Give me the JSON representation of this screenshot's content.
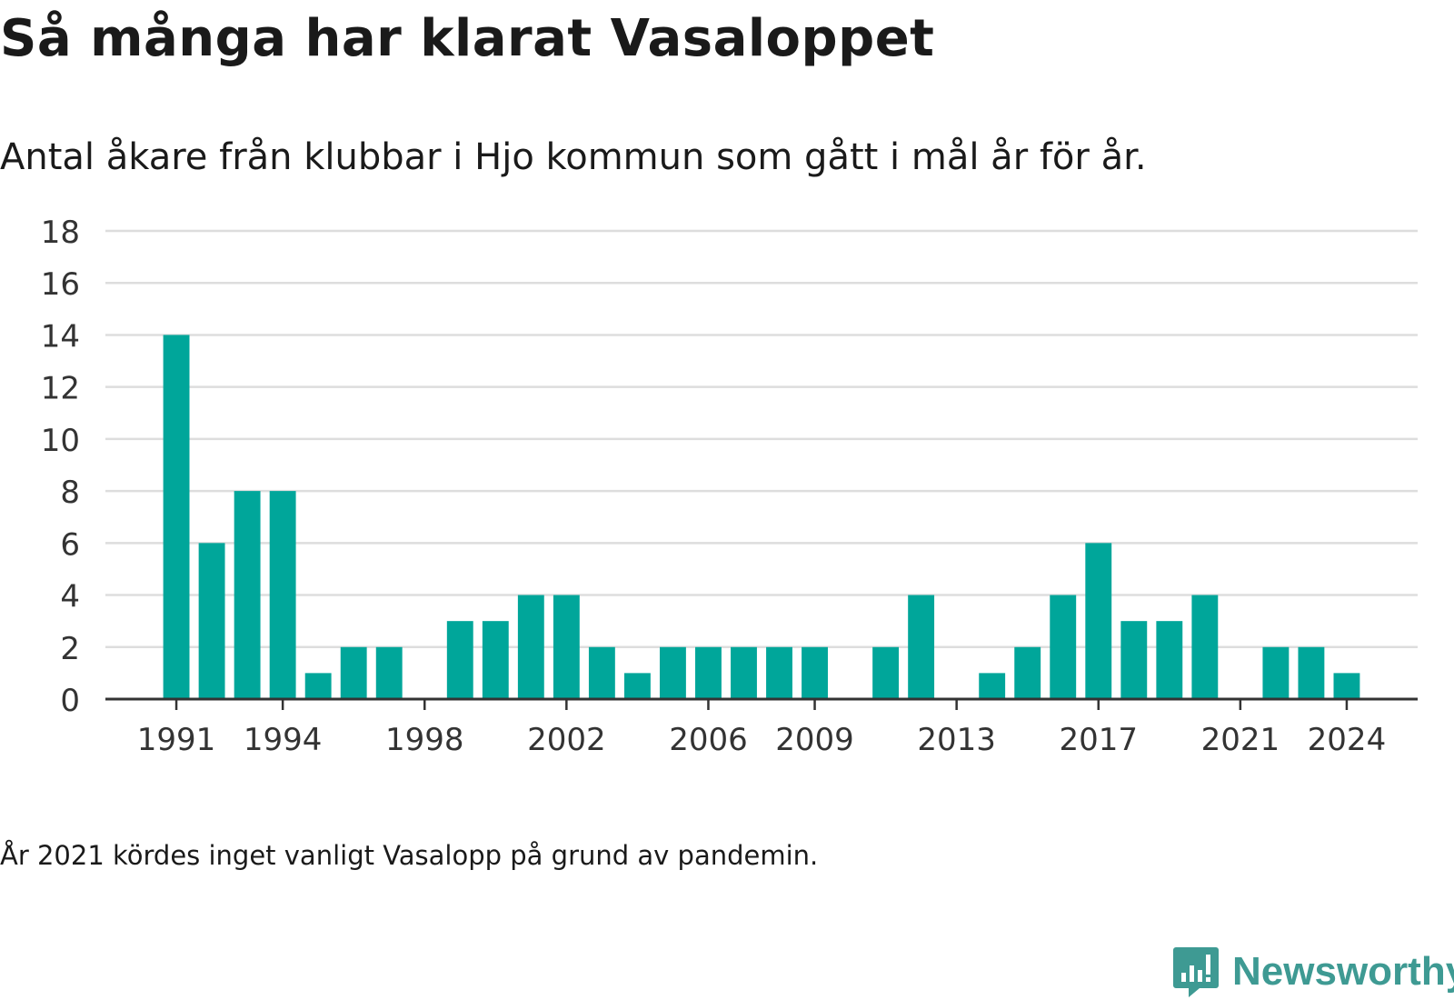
{
  "header": {
    "title": "Så många har klarat Vasaloppet",
    "subtitle": "Antal åkare från klubbar i Hjo kommun som gått i mål år för år."
  },
  "footnote": "År 2021 kördes inget vanligt Vasalopp på grund av pandemin.",
  "brand": {
    "name": "Newsworthy",
    "icon": "newsworthy-logo-icon",
    "color": "#3e9a93"
  },
  "colors": {
    "bar": "#00a69a",
    "grid": "#dddddd",
    "axis": "#333333",
    "text": "#333333"
  },
  "chart_data": {
    "type": "bar",
    "categories": [
      1991,
      1992,
      1993,
      1994,
      1995,
      1996,
      1997,
      1998,
      1999,
      2000,
      2001,
      2002,
      2003,
      2004,
      2005,
      2006,
      2007,
      2008,
      2009,
      2010,
      2011,
      2012,
      2013,
      2014,
      2015,
      2016,
      2017,
      2018,
      2019,
      2020,
      2021,
      2022,
      2023,
      2024
    ],
    "values": [
      14,
      6,
      8,
      8,
      1,
      2,
      2,
      0,
      3,
      3,
      4,
      4,
      2,
      1,
      2,
      2,
      2,
      2,
      2,
      0,
      2,
      4,
      0,
      1,
      2,
      4,
      6,
      3,
      3,
      4,
      0,
      2,
      2,
      1
    ],
    "x_tick_labels": [
      "1991",
      "1994",
      "1998",
      "2002",
      "2006",
      "2009",
      "2013",
      "2017",
      "2021",
      "2024"
    ],
    "y_ticks": [
      0,
      2,
      4,
      6,
      8,
      10,
      12,
      14,
      16,
      18
    ],
    "ylim": [
      0,
      18
    ],
    "grid": true,
    "legend": "none",
    "xlabel": "",
    "ylabel": ""
  }
}
